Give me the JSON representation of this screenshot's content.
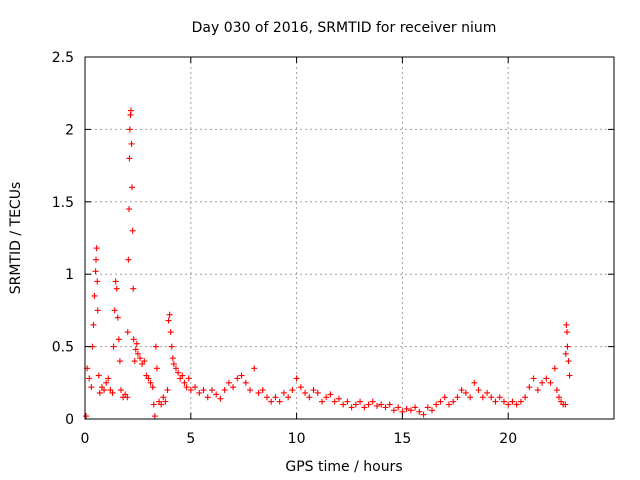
{
  "chart_data": {
    "type": "scatter",
    "title": "Day 030 of 2016, SRMTID for receiver nium",
    "xlabel": "GPS time / hours",
    "ylabel": "SRMTID / TECUs",
    "xlim": [
      0,
      25
    ],
    "ylim": [
      0,
      2.5
    ],
    "xticks": [
      0,
      5,
      10,
      15,
      20
    ],
    "xtick_labels": [
      "0",
      "5",
      "10",
      "15",
      "20"
    ],
    "yticks": [
      0,
      0.5,
      1,
      1.5,
      2,
      2.5
    ],
    "ytick_labels": [
      "0",
      "0.5",
      "1",
      "1.5",
      "2",
      "2.5"
    ],
    "grid": true,
    "marker": "plus",
    "color": "#ff0000",
    "series": [
      {
        "name": "SRMTID",
        "points": [
          [
            0.05,
            0.02
          ],
          [
            0.1,
            0.35
          ],
          [
            0.2,
            0.28
          ],
          [
            0.3,
            0.22
          ],
          [
            0.35,
            0.5
          ],
          [
            0.4,
            0.65
          ],
          [
            0.45,
            0.85
          ],
          [
            0.5,
            1.02
          ],
          [
            0.52,
            1.1
          ],
          [
            0.55,
            1.18
          ],
          [
            0.58,
            0.95
          ],
          [
            0.6,
            0.75
          ],
          [
            0.65,
            0.3
          ],
          [
            0.7,
            0.18
          ],
          [
            0.8,
            0.22
          ],
          [
            0.9,
            0.2
          ],
          [
            1.0,
            0.25
          ],
          [
            1.1,
            0.28
          ],
          [
            1.2,
            0.2
          ],
          [
            1.3,
            0.18
          ],
          [
            1.35,
            0.5
          ],
          [
            1.4,
            0.75
          ],
          [
            1.45,
            0.95
          ],
          [
            1.5,
            0.9
          ],
          [
            1.55,
            0.7
          ],
          [
            1.6,
            0.55
          ],
          [
            1.65,
            0.4
          ],
          [
            1.7,
            0.2
          ],
          [
            1.8,
            0.15
          ],
          [
            1.9,
            0.17
          ],
          [
            2.0,
            0.15
          ],
          [
            2.02,
            0.6
          ],
          [
            2.05,
            1.1
          ],
          [
            2.08,
            1.45
          ],
          [
            2.1,
            1.8
          ],
          [
            2.12,
            2.0
          ],
          [
            2.15,
            2.1
          ],
          [
            2.17,
            2.13
          ],
          [
            2.2,
            1.9
          ],
          [
            2.22,
            1.6
          ],
          [
            2.25,
            1.3
          ],
          [
            2.28,
            0.9
          ],
          [
            2.3,
            0.55
          ],
          [
            2.35,
            0.4
          ],
          [
            2.4,
            0.48
          ],
          [
            2.45,
            0.52
          ],
          [
            2.5,
            0.45
          ],
          [
            2.6,
            0.42
          ],
          [
            2.7,
            0.38
          ],
          [
            2.8,
            0.4
          ],
          [
            2.9,
            0.3
          ],
          [
            3.0,
            0.28
          ],
          [
            3.1,
            0.25
          ],
          [
            3.2,
            0.22
          ],
          [
            3.25,
            0.1
          ],
          [
            3.3,
            0.02
          ],
          [
            3.35,
            0.5
          ],
          [
            3.4,
            0.35
          ],
          [
            3.5,
            0.12
          ],
          [
            3.6,
            0.1
          ],
          [
            3.7,
            0.15
          ],
          [
            3.8,
            0.12
          ],
          [
            3.9,
            0.2
          ],
          [
            3.95,
            0.68
          ],
          [
            4.0,
            0.72
          ],
          [
            4.05,
            0.6
          ],
          [
            4.1,
            0.5
          ],
          [
            4.15,
            0.42
          ],
          [
            4.2,
            0.38
          ],
          [
            4.3,
            0.35
          ],
          [
            4.4,
            0.32
          ],
          [
            4.5,
            0.28
          ],
          [
            4.6,
            0.3
          ],
          [
            4.7,
            0.25
          ],
          [
            4.8,
            0.22
          ],
          [
            4.9,
            0.28
          ],
          [
            5.0,
            0.2
          ],
          [
            5.2,
            0.22
          ],
          [
            5.4,
            0.18
          ],
          [
            5.6,
            0.2
          ],
          [
            5.8,
            0.15
          ],
          [
            6.0,
            0.2
          ],
          [
            6.2,
            0.17
          ],
          [
            6.4,
            0.14
          ],
          [
            6.6,
            0.2
          ],
          [
            6.8,
            0.25
          ],
          [
            7.0,
            0.22
          ],
          [
            7.2,
            0.28
          ],
          [
            7.4,
            0.3
          ],
          [
            7.6,
            0.25
          ],
          [
            7.8,
            0.2
          ],
          [
            8.0,
            0.35
          ],
          [
            8.2,
            0.18
          ],
          [
            8.4,
            0.2
          ],
          [
            8.6,
            0.15
          ],
          [
            8.8,
            0.12
          ],
          [
            9.0,
            0.15
          ],
          [
            9.2,
            0.12
          ],
          [
            9.4,
            0.18
          ],
          [
            9.6,
            0.15
          ],
          [
            9.8,
            0.2
          ],
          [
            10.0,
            0.28
          ],
          [
            10.2,
            0.22
          ],
          [
            10.4,
            0.18
          ],
          [
            10.6,
            0.15
          ],
          [
            10.8,
            0.2
          ],
          [
            11.0,
            0.18
          ],
          [
            11.2,
            0.12
          ],
          [
            11.4,
            0.15
          ],
          [
            11.6,
            0.17
          ],
          [
            11.8,
            0.12
          ],
          [
            12.0,
            0.14
          ],
          [
            12.2,
            0.1
          ],
          [
            12.4,
            0.12
          ],
          [
            12.6,
            0.08
          ],
          [
            12.8,
            0.1
          ],
          [
            13.0,
            0.12
          ],
          [
            13.2,
            0.08
          ],
          [
            13.4,
            0.1
          ],
          [
            13.6,
            0.12
          ],
          [
            13.8,
            0.09
          ],
          [
            14.0,
            0.1
          ],
          [
            14.2,
            0.08
          ],
          [
            14.4,
            0.1
          ],
          [
            14.6,
            0.06
          ],
          [
            14.8,
            0.08
          ],
          [
            15.0,
            0.05
          ],
          [
            15.2,
            0.07
          ],
          [
            15.4,
            0.06
          ],
          [
            15.6,
            0.08
          ],
          [
            15.8,
            0.05
          ],
          [
            16.0,
            0.03
          ],
          [
            16.2,
            0.08
          ],
          [
            16.4,
            0.06
          ],
          [
            16.6,
            0.1
          ],
          [
            16.8,
            0.12
          ],
          [
            17.0,
            0.15
          ],
          [
            17.2,
            0.1
          ],
          [
            17.4,
            0.12
          ],
          [
            17.6,
            0.15
          ],
          [
            17.8,
            0.2
          ],
          [
            18.0,
            0.18
          ],
          [
            18.2,
            0.15
          ],
          [
            18.4,
            0.25
          ],
          [
            18.6,
            0.2
          ],
          [
            18.8,
            0.15
          ],
          [
            19.0,
            0.18
          ],
          [
            19.2,
            0.15
          ],
          [
            19.4,
            0.12
          ],
          [
            19.6,
            0.15
          ],
          [
            19.8,
            0.12
          ],
          [
            20.0,
            0.1
          ],
          [
            20.2,
            0.12
          ],
          [
            20.4,
            0.1
          ],
          [
            20.6,
            0.12
          ],
          [
            20.8,
            0.15
          ],
          [
            21.0,
            0.22
          ],
          [
            21.2,
            0.28
          ],
          [
            21.4,
            0.2
          ],
          [
            21.6,
            0.25
          ],
          [
            21.8,
            0.28
          ],
          [
            22.0,
            0.25
          ],
          [
            22.2,
            0.35
          ],
          [
            22.3,
            0.2
          ],
          [
            22.4,
            0.15
          ],
          [
            22.5,
            0.12
          ],
          [
            22.6,
            0.1
          ],
          [
            22.7,
            0.1
          ],
          [
            22.72,
            0.45
          ],
          [
            22.75,
            0.65
          ],
          [
            22.78,
            0.6
          ],
          [
            22.8,
            0.5
          ],
          [
            22.85,
            0.4
          ],
          [
            22.9,
            0.3
          ]
        ]
      }
    ]
  }
}
